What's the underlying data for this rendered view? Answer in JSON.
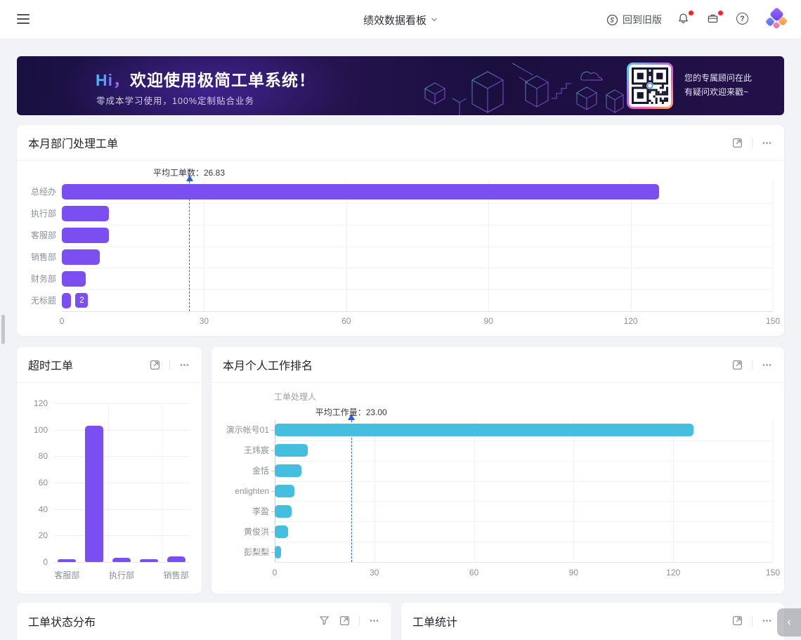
{
  "header": {
    "title": "绩效数据看板",
    "back_label": "回到旧版",
    "help_glyph": "?"
  },
  "banner": {
    "hi": "Hi，",
    "title_rest": "欢迎使用极简工单系统！",
    "subtitle": "零成本学习使用，100%定制贴合业务",
    "qr_line1": "您的专属顾问在此",
    "qr_line2": "有疑问欢迎来戳~"
  },
  "cards": {
    "dept": {
      "title": "本月部门处理工单"
    },
    "overtime": {
      "title": "超时工单"
    },
    "personal": {
      "title": "本月个人工作排名"
    },
    "status": {
      "title": "工单状态分布"
    },
    "stats": {
      "title": "工单统计"
    }
  },
  "misc": {
    "collapse_glyph": "‹"
  },
  "colors": {
    "purple_bar": "#7a4ef0",
    "cyan_bar": "#45bee0",
    "average_line": "#2e5fd8"
  },
  "chart_data": [
    {
      "id": "dept",
      "type": "bar",
      "orientation": "horizontal",
      "title": "本月部门处理工单",
      "categories": [
        "总经办",
        "执行部",
        "客服部",
        "销售部",
        "财务部",
        "无标题"
      ],
      "values": [
        126,
        10,
        10,
        8,
        5,
        2
      ],
      "xlim": [
        0,
        150
      ],
      "xticks": [
        0,
        30,
        60,
        90,
        120,
        150
      ],
      "average_line": {
        "value": 26.83,
        "label": "平均工单数：26.83"
      },
      "bar_color": "#7a4ef0",
      "value_badge": {
        "index": 5,
        "text": "2"
      },
      "grid": true,
      "legend": "none"
    },
    {
      "id": "overtime",
      "type": "bar",
      "orientation": "vertical",
      "title": "超时工单",
      "categories": [
        "客服部",
        "",
        "执行部",
        "",
        "销售部"
      ],
      "values": [
        2,
        103,
        3,
        2,
        4
      ],
      "ylim": [
        0,
        120
      ],
      "yticks": [
        0,
        20,
        40,
        60,
        80,
        100,
        120
      ],
      "bar_color": "#7a4ef0",
      "grid": true,
      "legend": "none"
    },
    {
      "id": "personal",
      "type": "bar",
      "orientation": "horizontal",
      "title": "本月个人工作排名",
      "axis_name": "工单处理人",
      "categories": [
        "演示帐号01",
        "王炜宸",
        "金恬",
        "enlighten",
        "李盈",
        "黄俊洪",
        "彭梨梨"
      ],
      "values": [
        126,
        10,
        8,
        6,
        5,
        4,
        2
      ],
      "xlim": [
        0,
        150
      ],
      "xticks": [
        0,
        30,
        60,
        90,
        120,
        150
      ],
      "average_line": {
        "value": 23,
        "label": "平均工作量：23.00"
      },
      "bar_color": "#45bee0",
      "grid": true,
      "legend": "none"
    }
  ]
}
